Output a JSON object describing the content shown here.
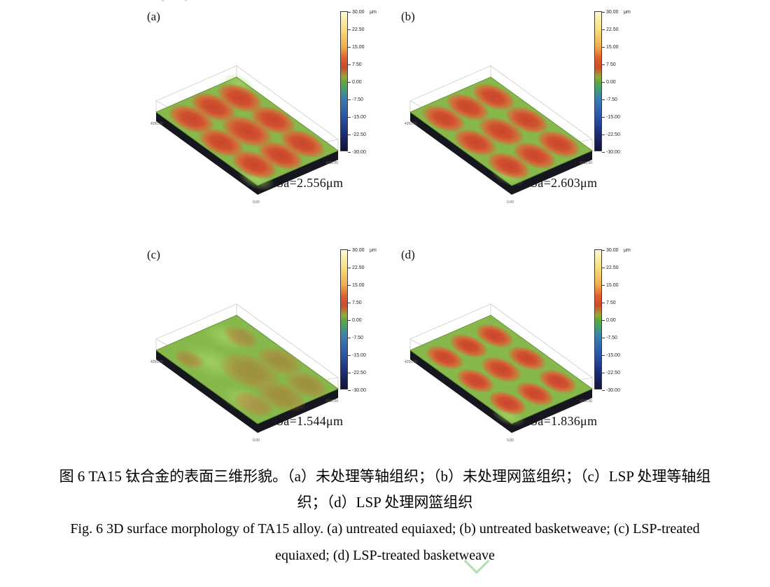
{
  "figure": {
    "panels": [
      {
        "label": "(a)",
        "sa": "Sa=2.556μm"
      },
      {
        "label": "(b)",
        "sa": "Sa=2.603μm"
      },
      {
        "label": "(c)",
        "sa": "Sa=1.544μm"
      },
      {
        "label": "(d)",
        "sa": "Sa=1.836μm"
      }
    ],
    "colorbar": {
      "unit": "μm",
      "ticks": [
        "30.00",
        "22.50",
        "15.00",
        "7.50",
        "0.00",
        "-7.50",
        "-15.00",
        "-22.50",
        "-30.00"
      ]
    },
    "axis": {
      "left": "4250.00",
      "right": "4250.00",
      "origin": "0.00"
    },
    "surface_colors": {
      "base_green": "#86b84b",
      "spot_red": "#d04a28",
      "plate_side_dark": "#16161e"
    }
  },
  "captions": {
    "chinese_line1": "图 6 TA15 钛合金的表面三维形貌。（a）未处理等轴组织；（b）未处理网篮组织；（c）LSP 处理等轴组",
    "chinese_line2": "织；（d）LSP 处理网篮组织",
    "english_line1": "Fig. 6 3D surface morphology of TA15 alloy. (a) untreated equiaxed; (b) untreated basketweave; (c) LSP-treated",
    "english_line2": "equiaxed; (d) LSP-treated basketweave"
  }
}
